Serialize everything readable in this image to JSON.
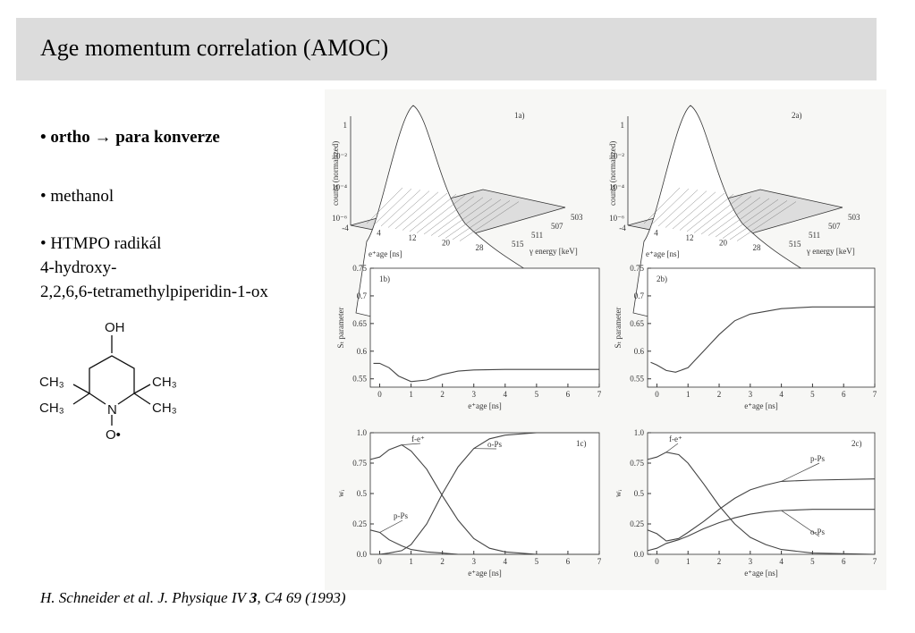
{
  "header": {
    "title": "Age momentum correlation (AMOC)"
  },
  "bullets": [
    {
      "lines": [
        "• ortho → para konverze"
      ]
    },
    {
      "lines": [
        "• methanol"
      ]
    },
    {
      "lines": [
        "• HTMPO radikál",
        "4-hydroxy-",
        "2,2,6,6-tetramethylpiperidin-1-ox"
      ]
    }
  ],
  "molecule": {
    "labels": [
      "OH",
      "CH₃",
      "CH₃",
      "CH₃",
      "CH₃",
      "N",
      "O•"
    ]
  },
  "citation": [
    "H. Schneider et al. J. Physique IV ",
    "3",
    ", C4 69 (1993)"
  ],
  "figure": {
    "panels": [
      {
        "type": "surface",
        "label": "1a)",
        "zlabel": "counts (normalized)",
        "zticks": [
          {
            "value": 1,
            "label": "1"
          },
          {
            "value": 0.01,
            "label": "10⁻²"
          },
          {
            "value": 0.0001,
            "label": "10⁻⁴"
          },
          {
            "value": 1e-06,
            "label": "10⁻⁶"
          }
        ],
        "xlabel": "e⁺age [ns]",
        "xticks": [
          -4,
          4,
          12,
          20,
          28
        ],
        "ylabel": "γ energy [keV]",
        "yticks": [
          503,
          507,
          511,
          515
        ]
      },
      {
        "type": "surface",
        "label": "2a)",
        "zlabel": "counts (normalized)",
        "zticks": [
          {
            "value": 1,
            "label": "1"
          },
          {
            "value": 0.01,
            "label": "10⁻²"
          },
          {
            "value": 0.0001,
            "label": "10⁻⁴"
          },
          {
            "value": 1e-06,
            "label": "10⁻⁶"
          }
        ],
        "xlabel": "e⁺age [ns]",
        "xticks": [
          -4,
          4,
          12,
          20,
          28
        ],
        "ylabel": "γ energy [keV]",
        "yticks": [
          503,
          507,
          511,
          515
        ]
      },
      {
        "type": "line",
        "label": "1b)",
        "ylabel": "Sₜ parameter",
        "xlabel": "e⁺age [ns]",
        "xlim": [
          -0.3,
          7
        ],
        "xticks": [
          0,
          1,
          2,
          3,
          4,
          5,
          6,
          7
        ],
        "ylim": [
          0.535,
          0.75
        ],
        "yticks": [
          0.55,
          0.6,
          0.65,
          0.7,
          0.75
        ],
        "x": [
          -0.2,
          0,
          0.3,
          0.6,
          1,
          1.5,
          2,
          2.5,
          3,
          4,
          5,
          6,
          7
        ],
        "series": [
          {
            "values": [
              0.578,
              0.578,
              0.57,
              0.555,
              0.545,
              0.548,
              0.558,
              0.564,
              0.566,
              0.567,
              0.567,
              0.567,
              0.567
            ]
          }
        ]
      },
      {
        "type": "line",
        "label": "2b)",
        "ylabel": "Sₜ parameter",
        "xlabel": "e⁺age [ns]",
        "xlim": [
          -0.3,
          7
        ],
        "xticks": [
          0,
          1,
          2,
          3,
          4,
          5,
          6,
          7
        ],
        "ylim": [
          0.535,
          0.75
        ],
        "yticks": [
          0.55,
          0.6,
          0.65,
          0.7,
          0.75
        ],
        "x": [
          -0.2,
          0,
          0.3,
          0.6,
          1,
          1.5,
          2,
          2.5,
          3,
          4,
          5,
          6,
          7
        ],
        "series": [
          {
            "values": [
              0.58,
              0.575,
              0.565,
              0.562,
              0.57,
              0.6,
              0.63,
              0.655,
              0.667,
              0.677,
              0.68,
              0.68,
              0.68
            ]
          }
        ]
      },
      {
        "type": "line",
        "label": "1c)",
        "ylabel": "wᵢ",
        "xlabel": "e⁺age [ns]",
        "xlim": [
          -0.3,
          7
        ],
        "xticks": [
          0,
          1,
          2,
          3,
          4,
          5,
          6,
          7
        ],
        "ylim": [
          0,
          1
        ],
        "yticks": [
          {
            "value": 0,
            "label": "0.0"
          },
          0.25,
          0.5,
          0.75,
          {
            "value": 1,
            "label": "1.0"
          }
        ],
        "x": [
          -0.3,
          0,
          0.3,
          0.7,
          1,
          1.5,
          2,
          2.5,
          3,
          3.5,
          4,
          5,
          7
        ],
        "series": [
          {
            "name": "f-e⁺",
            "values": [
              0.78,
              0.8,
              0.86,
              0.9,
              0.85,
              0.7,
              0.48,
              0.28,
              0.13,
              0.05,
              0.02,
              0,
              0
            ]
          },
          {
            "name": "o-Ps",
            "values": [
              0,
              0,
              0.01,
              0.03,
              0.08,
              0.25,
              0.5,
              0.72,
              0.87,
              0.95,
              0.98,
              1,
              1
            ]
          },
          {
            "name": "p-Ps",
            "values": [
              0.2,
              0.18,
              0.12,
              0.07,
              0.04,
              0.02,
              0.01,
              0,
              0,
              0,
              0,
              0,
              0
            ]
          }
        ]
      },
      {
        "type": "line",
        "label": "2c)",
        "ylabel": "wᵢ",
        "xlabel": "e⁺age [ns]",
        "xlim": [
          -0.3,
          7
        ],
        "xticks": [
          0,
          1,
          2,
          3,
          4,
          5,
          6,
          7
        ],
        "ylim": [
          0,
          1
        ],
        "yticks": [
          {
            "value": 0,
            "label": "0.0"
          },
          0.25,
          0.5,
          0.75,
          {
            "value": 1,
            "label": "1.0"
          }
        ],
        "x": [
          -0.3,
          0,
          0.3,
          0.7,
          1,
          1.5,
          2,
          2.5,
          3,
          3.5,
          4,
          5,
          7
        ],
        "series": [
          {
            "name": "f-e⁺",
            "values": [
              0.78,
              0.8,
              0.84,
              0.82,
              0.75,
              0.58,
              0.4,
              0.25,
              0.14,
              0.08,
              0.04,
              0.01,
              0
            ]
          },
          {
            "name": "p-Ps",
            "values": [
              0.2,
              0.17,
              0.11,
              0.13,
              0.18,
              0.27,
              0.37,
              0.46,
              0.53,
              0.57,
              0.6,
              0.61,
              0.62
            ]
          },
          {
            "name": "o-Ps",
            "values": [
              0.03,
              0.05,
              0.09,
              0.12,
              0.15,
              0.21,
              0.26,
              0.3,
              0.33,
              0.35,
              0.36,
              0.37,
              0.37
            ]
          }
        ]
      }
    ]
  }
}
